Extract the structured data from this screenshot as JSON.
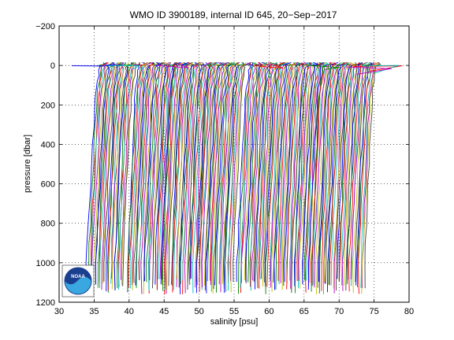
{
  "chart_data": {
    "type": "line",
    "title": "WMO ID 3900189, internal ID 645, 20−Sep−2017",
    "xlabel": "salinity [psu]",
    "ylabel": "pressure [dbar]",
    "xlim": [
      30,
      80
    ],
    "ylim": [
      -200,
      1200
    ],
    "y_reversed": true,
    "grid": "dotted",
    "xticks": [
      30,
      35,
      40,
      45,
      50,
      55,
      60,
      65,
      70,
      75,
      80
    ],
    "yticks": [
      -200,
      0,
      200,
      400,
      600,
      800,
      1000,
      1200
    ],
    "ytick_labels": [
      "−200",
      "0",
      "200",
      "400",
      "600",
      "800",
      "1000",
      "1200"
    ],
    "profile_count": 210,
    "first_profile_surface_salinity": 35.2,
    "profile_offset_step_psu": 0.19,
    "profile_bottom_pressure_range": [
      1080,
      1160
    ],
    "colors": [
      "#0000ff",
      "#008000",
      "#ff0000",
      "#00bfbf",
      "#bf00bf",
      "#bfbf00",
      "#404040"
    ],
    "logo": {
      "name": "NOAA",
      "colors": [
        "#1a3f8f",
        "#3aa7e0",
        "#ffffff"
      ]
    }
  }
}
